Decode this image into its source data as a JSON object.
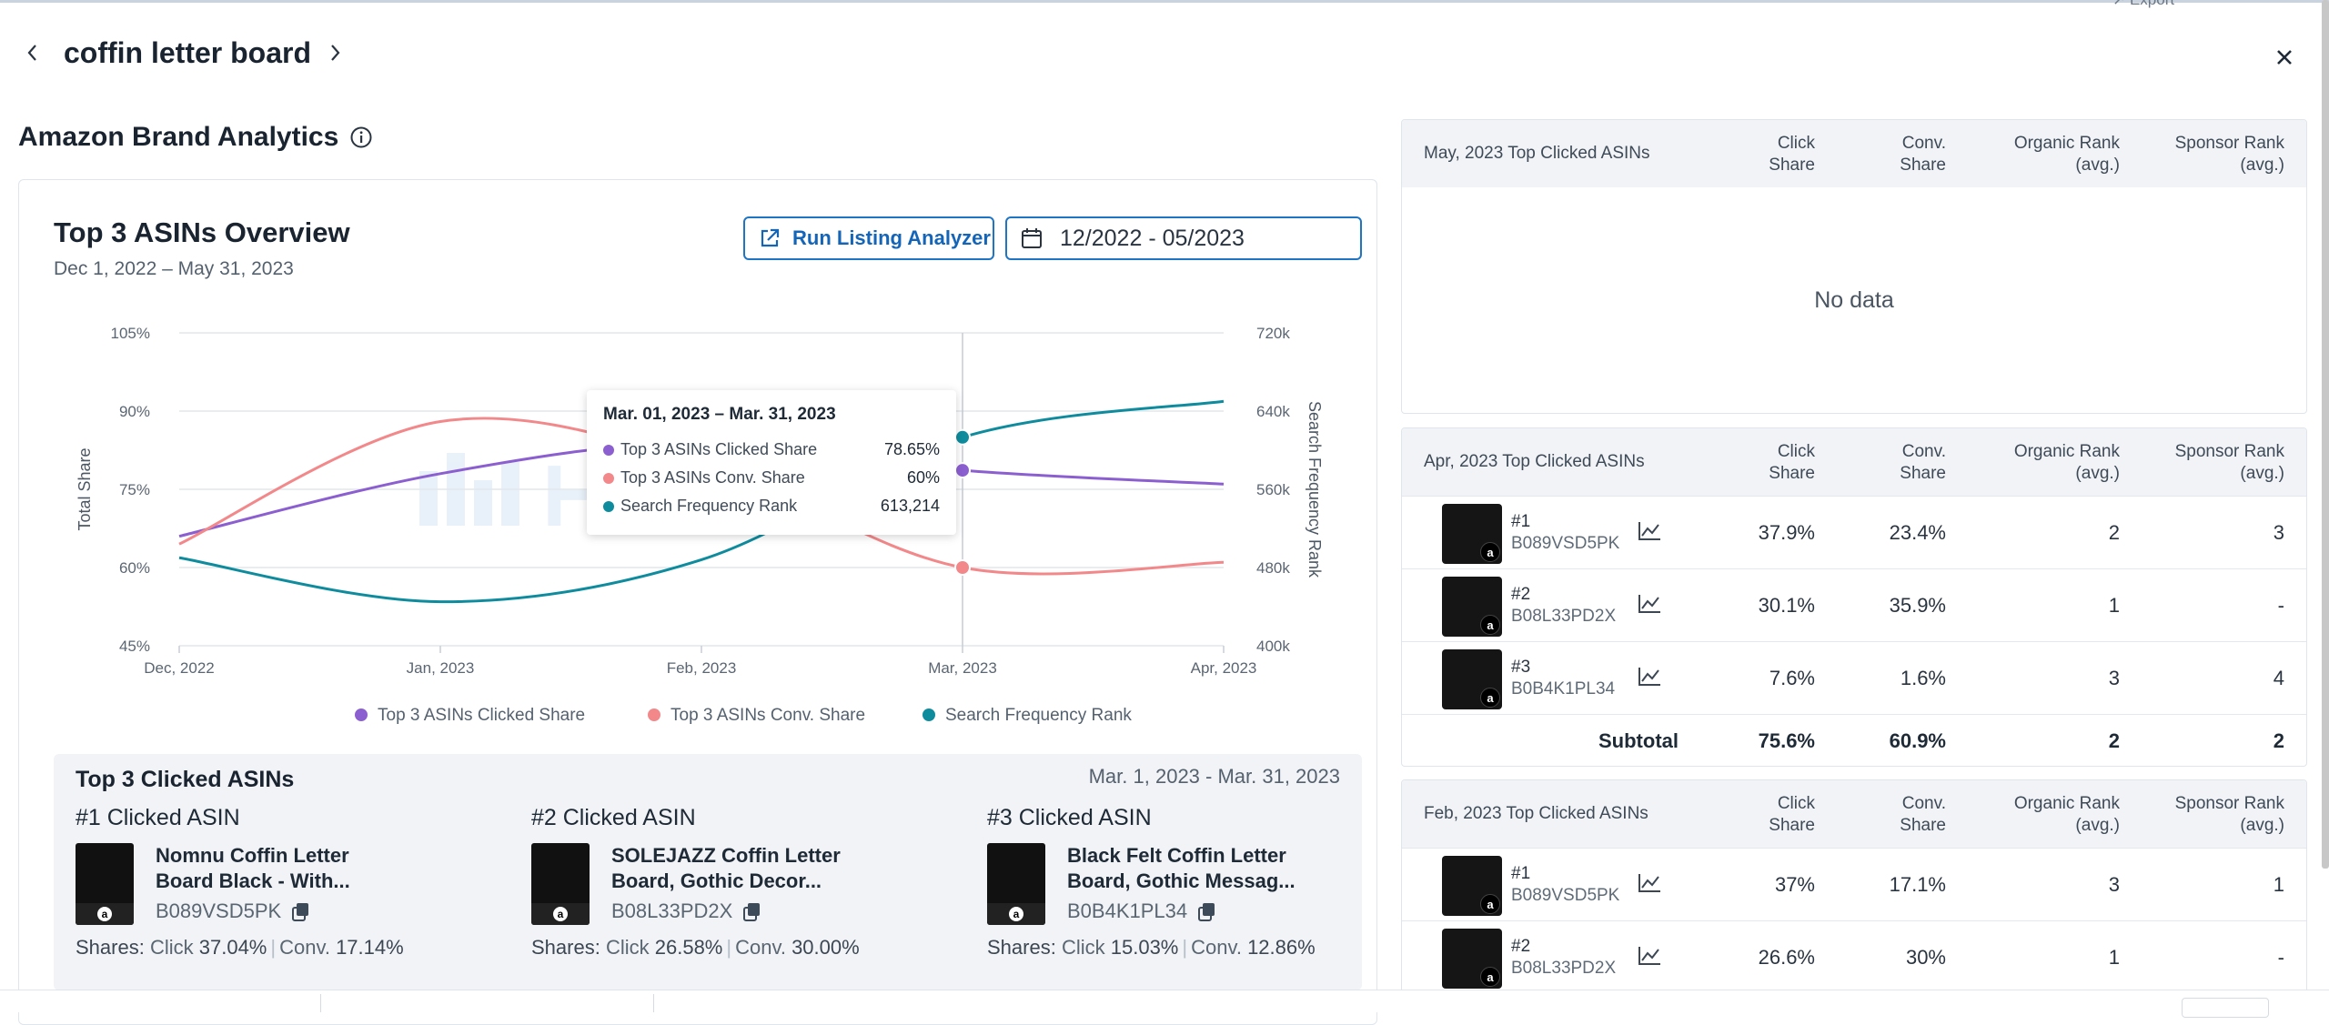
{
  "header": {
    "keyword": "coffin letter board",
    "partial_top_text": "↗ Export"
  },
  "section": {
    "title": "Amazon Brand Analytics"
  },
  "overview": {
    "title": "Top 3 ASINs Overview",
    "subtitle": "Dec 1, 2022 – May 31, 2023",
    "run_button": "Run Listing Analyzer",
    "date_range": "12/2022 - 05/2023"
  },
  "colors": {
    "clicked": "#8c5fd0",
    "conv": "#f2888a",
    "sfr": "#0e8c9e",
    "accent": "#1e75c4"
  },
  "chart_data": {
    "type": "line",
    "x": [
      "Dec, 2022",
      "Jan, 2023",
      "Feb, 2023",
      "Mar, 2023",
      "Apr, 2023"
    ],
    "y_left_label": "Total Share",
    "y_left_ticks": [
      "105%",
      "90%",
      "75%",
      "60%",
      "45%"
    ],
    "y_left_range": [
      45,
      105
    ],
    "y_right_label": "Search Frequency Rank",
    "y_right_ticks": [
      "720k",
      "640k",
      "560k",
      "480k",
      "400k"
    ],
    "y_right_range": [
      400000,
      720000
    ],
    "series": [
      {
        "name": "Top 3 ASINs Clicked Share",
        "axis": "left",
        "values": [
          66,
          78,
          84,
          78.65,
          76
        ]
      },
      {
        "name": "Top 3 ASINs Conv. Share",
        "axis": "left",
        "values": [
          64.5,
          88,
          80,
          60,
          61
        ]
      },
      {
        "name": "Search Frequency Rank",
        "axis": "right",
        "values": [
          490000,
          445000,
          488000,
          613214,
          650000
        ]
      }
    ],
    "highlight_index": 3,
    "grid": true,
    "legend_position": "bottom"
  },
  "tooltip": {
    "title": "Mar. 01, 2023 – Mar. 31, 2023",
    "rows": [
      {
        "label": "Top 3 ASINs Clicked Share",
        "value": "78.65%"
      },
      {
        "label": "Top 3 ASINs Conv. Share",
        "value": "60%"
      },
      {
        "label": "Search Frequency Rank",
        "value": "613,214"
      }
    ]
  },
  "watermark": "Helium 10",
  "top3": {
    "title": "Top 3 Clicked ASINs",
    "range": "Mar. 1, 2023 - Mar. 31, 2023",
    "items": [
      {
        "rank": "#1 Clicked ASIN",
        "name": "Nomnu Coffin Letter Board Black - With...",
        "asin": "B089VSD5PK",
        "shares_label": "Shares:",
        "click_label": "Click",
        "click": "37.04%",
        "conv_label": "Conv.",
        "conv": "17.14%"
      },
      {
        "rank": "#2 Clicked ASIN",
        "name": "SOLEJAZZ Coffin Letter Board, Gothic Decor...",
        "asin": "B08L33PD2X",
        "shares_label": "Shares:",
        "click_label": "Click",
        "click": "26.58%",
        "conv_label": "Conv.",
        "conv": "30.00%"
      },
      {
        "rank": "#3 Clicked ASIN",
        "name": "Black Felt Coffin Letter Board, Gothic Messag...",
        "asin": "B0B4K1PL34",
        "shares_label": "Shares:",
        "click_label": "Click",
        "click": "15.03%",
        "conv_label": "Conv.",
        "conv": "12.86%"
      }
    ]
  },
  "tables": {
    "columns": {
      "click": [
        "Click",
        "Share"
      ],
      "conv": [
        "Conv.",
        "Share"
      ],
      "organic": [
        "Organic Rank",
        "(avg.)"
      ],
      "sponsor": [
        "Sponsor Rank",
        "(avg.)"
      ]
    },
    "may": {
      "title": "May, 2023 Top Clicked ASINs",
      "empty": "No data"
    },
    "apr": {
      "title": "Apr, 2023 Top Clicked ASINs",
      "rows": [
        {
          "rank": "#1",
          "asin": "B089VSD5PK",
          "click": "37.9%",
          "conv": "23.4%",
          "organic": "2",
          "sponsor": "3"
        },
        {
          "rank": "#2",
          "asin": "B08L33PD2X",
          "click": "30.1%",
          "conv": "35.9%",
          "organic": "1",
          "sponsor": "-"
        },
        {
          "rank": "#3",
          "asin": "B0B4K1PL34",
          "click": "7.6%",
          "conv": "1.6%",
          "organic": "3",
          "sponsor": "4"
        }
      ],
      "subtotal": {
        "label": "Subtotal",
        "click": "75.6%",
        "conv": "60.9%",
        "organic": "2",
        "sponsor": "2"
      }
    },
    "feb": {
      "title": "Feb, 2023 Top Clicked ASINs",
      "rows": [
        {
          "rank": "#1",
          "asin": "B089VSD5PK",
          "click": "37%",
          "conv": "17.1%",
          "organic": "3",
          "sponsor": "1"
        },
        {
          "rank": "#2",
          "asin": "B08L33PD2X",
          "click": "26.6%",
          "conv": "30%",
          "organic": "1",
          "sponsor": "-"
        }
      ]
    }
  }
}
